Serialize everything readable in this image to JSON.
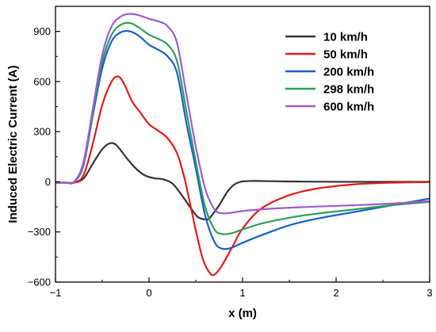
{
  "chart_data": {
    "type": "line",
    "title": "",
    "xlabel": "x (m)",
    "ylabel": "Induced Electric Current (A)",
    "xlim": [
      -1,
      3
    ],
    "ylim": [
      -600,
      1050
    ],
    "xticks": [
      -1,
      0,
      1,
      2,
      3
    ],
    "xtick_labels": [
      "−1",
      "0",
      "1",
      "2",
      "3"
    ],
    "yticks": [
      -600,
      -300,
      0,
      300,
      600,
      900
    ],
    "ytick_labels": [
      "−600",
      "−300",
      "0",
      "300",
      "600",
      "900"
    ],
    "grid": false,
    "legend_position": "top-right",
    "series": [
      {
        "name": "10 km/h",
        "color": "#333333",
        "points": [
          [
            -1.1,
            -5
          ],
          [
            -0.9,
            -5
          ],
          [
            -0.8,
            -5
          ],
          [
            -0.7,
            20
          ],
          [
            -0.6,
            110
          ],
          [
            -0.5,
            195
          ],
          [
            -0.42,
            230
          ],
          [
            -0.35,
            220
          ],
          [
            -0.25,
            150
          ],
          [
            -0.15,
            85
          ],
          [
            -0.05,
            40
          ],
          [
            0.05,
            22
          ],
          [
            0.15,
            15
          ],
          [
            0.25,
            -10
          ],
          [
            0.35,
            -80
          ],
          [
            0.45,
            -160
          ],
          [
            0.52,
            -210
          ],
          [
            0.6,
            -225
          ],
          [
            0.65,
            -215
          ],
          [
            0.75,
            -140
          ],
          [
            0.85,
            -50
          ],
          [
            0.95,
            -5
          ],
          [
            1.1,
            5
          ],
          [
            1.5,
            2
          ],
          [
            2,
            0
          ],
          [
            3,
            0
          ]
        ]
      },
      {
        "name": "50 km/h",
        "color": "#e41a1c",
        "points": [
          [
            -1.1,
            -5
          ],
          [
            -0.9,
            -5
          ],
          [
            -0.8,
            -5
          ],
          [
            -0.7,
            40
          ],
          [
            -0.6,
            230
          ],
          [
            -0.5,
            460
          ],
          [
            -0.4,
            600
          ],
          [
            -0.33,
            630
          ],
          [
            -0.27,
            590
          ],
          [
            -0.18,
            480
          ],
          [
            -0.1,
            420
          ],
          [
            0,
            345
          ],
          [
            0.1,
            305
          ],
          [
            0.2,
            260
          ],
          [
            0.3,
            170
          ],
          [
            0.38,
            20
          ],
          [
            0.45,
            -160
          ],
          [
            0.52,
            -340
          ],
          [
            0.58,
            -470
          ],
          [
            0.65,
            -545
          ],
          [
            0.7,
            -555
          ],
          [
            0.78,
            -500
          ],
          [
            0.9,
            -380
          ],
          [
            1.0,
            -280
          ],
          [
            1.2,
            -160
          ],
          [
            1.5,
            -80
          ],
          [
            1.8,
            -40
          ],
          [
            2.2,
            -15
          ],
          [
            2.6,
            -5
          ],
          [
            3,
            -2
          ]
        ]
      },
      {
        "name": "200 km/h",
        "color": "#1660c7",
        "points": [
          [
            -1.1,
            -5
          ],
          [
            -0.9,
            -5
          ],
          [
            -0.8,
            0
          ],
          [
            -0.7,
            100
          ],
          [
            -0.6,
            400
          ],
          [
            -0.5,
            680
          ],
          [
            -0.4,
            840
          ],
          [
            -0.3,
            895
          ],
          [
            -0.2,
            900
          ],
          [
            -0.1,
            870
          ],
          [
            0,
            820
          ],
          [
            0.1,
            790
          ],
          [
            0.2,
            750
          ],
          [
            0.3,
            650
          ],
          [
            0.4,
            350
          ],
          [
            0.5,
            80
          ],
          [
            0.6,
            -200
          ],
          [
            0.7,
            -360
          ],
          [
            0.78,
            -400
          ],
          [
            0.88,
            -395
          ],
          [
            1.0,
            -365
          ],
          [
            1.2,
            -320
          ],
          [
            1.5,
            -260
          ],
          [
            1.8,
            -220
          ],
          [
            2.2,
            -180
          ],
          [
            2.6,
            -140
          ],
          [
            3,
            -100
          ]
        ]
      },
      {
        "name": "298 km/h",
        "color": "#2aa05a",
        "points": [
          [
            -1.1,
            -5
          ],
          [
            -0.9,
            -5
          ],
          [
            -0.8,
            0
          ],
          [
            -0.7,
            110
          ],
          [
            -0.6,
            420
          ],
          [
            -0.5,
            720
          ],
          [
            -0.4,
            880
          ],
          [
            -0.3,
            940
          ],
          [
            -0.2,
            950
          ],
          [
            -0.1,
            920
          ],
          [
            0,
            880
          ],
          [
            0.1,
            855
          ],
          [
            0.2,
            820
          ],
          [
            0.3,
            720
          ],
          [
            0.4,
            420
          ],
          [
            0.5,
            120
          ],
          [
            0.6,
            -150
          ],
          [
            0.7,
            -285
          ],
          [
            0.78,
            -312
          ],
          [
            0.88,
            -308
          ],
          [
            1.0,
            -285
          ],
          [
            1.2,
            -250
          ],
          [
            1.5,
            -215
          ],
          [
            1.8,
            -190
          ],
          [
            2.2,
            -165
          ],
          [
            2.6,
            -140
          ],
          [
            3,
            -120
          ]
        ]
      },
      {
        "name": "600 km/h",
        "color": "#a05ad2",
        "points": [
          [
            -1.1,
            -5
          ],
          [
            -0.9,
            -5
          ],
          [
            -0.8,
            0
          ],
          [
            -0.7,
            120
          ],
          [
            -0.6,
            440
          ],
          [
            -0.5,
            760
          ],
          [
            -0.4,
            930
          ],
          [
            -0.3,
            990
          ],
          [
            -0.2,
            1005
          ],
          [
            -0.1,
            995
          ],
          [
            0,
            975
          ],
          [
            0.1,
            960
          ],
          [
            0.2,
            930
          ],
          [
            0.3,
            830
          ],
          [
            0.4,
            520
          ],
          [
            0.5,
            210
          ],
          [
            0.6,
            -40
          ],
          [
            0.7,
            -165
          ],
          [
            0.78,
            -188
          ],
          [
            0.88,
            -185
          ],
          [
            1.0,
            -175
          ],
          [
            1.2,
            -165
          ],
          [
            1.5,
            -155
          ],
          [
            1.8,
            -148
          ],
          [
            2.2,
            -140
          ],
          [
            2.6,
            -130
          ],
          [
            3,
            -115
          ]
        ]
      }
    ]
  }
}
